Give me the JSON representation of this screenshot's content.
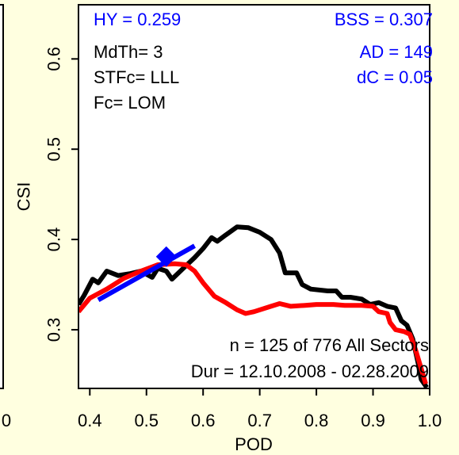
{
  "chart_data": {
    "type": "line",
    "xlabel": "POD",
    "ylabel": "CSI",
    "xlim": [
      0.38,
      1.0
    ],
    "ylim": [
      0.235,
      0.66
    ],
    "x_ticks": [
      "0.4",
      "0.5",
      "0.6",
      "0.7",
      "0.8",
      "0.9",
      "1.0"
    ],
    "y_ticks": [
      "0.3",
      "0.4",
      "0.5",
      "0.6"
    ],
    "left_edge_label": "0",
    "grid": false,
    "colors": {
      "background": "#ffffe0",
      "plot_background": "#ffffff",
      "blue_text": "#0000ff",
      "black_text": "#000000"
    },
    "series": [
      {
        "color": "#000000",
        "values_xy": [
          [
            0.38,
            0.328
          ],
          [
            0.39,
            0.338
          ],
          [
            0.405,
            0.356
          ],
          [
            0.415,
            0.352
          ],
          [
            0.43,
            0.365
          ],
          [
            0.45,
            0.36
          ],
          [
            0.47,
            0.362
          ],
          [
            0.49,
            0.365
          ],
          [
            0.51,
            0.358
          ],
          [
            0.52,
            0.368
          ],
          [
            0.535,
            0.365
          ],
          [
            0.545,
            0.356
          ],
          [
            0.565,
            0.368
          ],
          [
            0.585,
            0.38
          ],
          [
            0.6,
            0.39
          ],
          [
            0.615,
            0.402
          ],
          [
            0.625,
            0.398
          ],
          [
            0.64,
            0.405
          ],
          [
            0.66,
            0.414
          ],
          [
            0.68,
            0.413
          ],
          [
            0.7,
            0.408
          ],
          [
            0.72,
            0.4
          ],
          [
            0.735,
            0.385
          ],
          [
            0.745,
            0.363
          ],
          [
            0.765,
            0.363
          ],
          [
            0.775,
            0.35
          ],
          [
            0.79,
            0.345
          ],
          [
            0.82,
            0.343
          ],
          [
            0.835,
            0.343
          ],
          [
            0.845,
            0.336
          ],
          [
            0.86,
            0.336
          ],
          [
            0.87,
            0.335
          ],
          [
            0.88,
            0.334
          ],
          [
            0.895,
            0.328
          ],
          [
            0.91,
            0.33
          ],
          [
            0.925,
            0.326
          ],
          [
            0.94,
            0.324
          ],
          [
            0.95,
            0.31
          ],
          [
            0.96,
            0.305
          ],
          [
            0.97,
            0.29
          ],
          [
            0.98,
            0.262
          ],
          [
            0.985,
            0.245
          ],
          [
            0.995,
            0.236
          ]
        ]
      },
      {
        "color": "#ff0000",
        "values_xy": [
          [
            0.38,
            0.32
          ],
          [
            0.4,
            0.335
          ],
          [
            0.43,
            0.345
          ],
          [
            0.46,
            0.357
          ],
          [
            0.49,
            0.365
          ],
          [
            0.52,
            0.372
          ],
          [
            0.55,
            0.373
          ],
          [
            0.57,
            0.372
          ],
          [
            0.585,
            0.365
          ],
          [
            0.6,
            0.352
          ],
          [
            0.62,
            0.337
          ],
          [
            0.64,
            0.33
          ],
          [
            0.66,
            0.322
          ],
          [
            0.675,
            0.318
          ],
          [
            0.69,
            0.32
          ],
          [
            0.72,
            0.326
          ],
          [
            0.735,
            0.329
          ],
          [
            0.755,
            0.326
          ],
          [
            0.78,
            0.327
          ],
          [
            0.8,
            0.328
          ],
          [
            0.83,
            0.328
          ],
          [
            0.85,
            0.327
          ],
          [
            0.88,
            0.327
          ],
          [
            0.9,
            0.326
          ],
          [
            0.91,
            0.32
          ],
          [
            0.925,
            0.318
          ],
          [
            0.93,
            0.308
          ],
          [
            0.94,
            0.3
          ],
          [
            0.955,
            0.298
          ],
          [
            0.965,
            0.295
          ],
          [
            0.975,
            0.278
          ],
          [
            0.985,
            0.257
          ],
          [
            0.993,
            0.24
          ]
        ]
      },
      {
        "color": "#0000ff",
        "values_xy": [
          [
            0.415,
            0.333
          ],
          [
            0.585,
            0.393
          ]
        ]
      }
    ],
    "marker": {
      "x": 0.535,
      "y": 0.381,
      "shape": "diamond",
      "color": "#0000ff"
    },
    "annotations": {
      "top_left": [
        {
          "text": "HY = 0.259",
          "color": "#0000ff"
        },
        {
          "text": "MdTh= 3",
          "color": "#000000"
        },
        {
          "text": "STFc= LLL",
          "color": "#000000"
        },
        {
          "text": "Fc= LOM",
          "color": "#000000"
        }
      ],
      "top_right": [
        {
          "text": "BSS = 0.307",
          "color": "#0000ff"
        },
        {
          "text": "AD = 149",
          "color": "#0000ff"
        },
        {
          "text": "dC = 0.05",
          "color": "#0000ff"
        }
      ],
      "bottom": [
        {
          "text": "n = 125 of 776  All Sectors",
          "color": "#000000"
        },
        {
          "text": "Dur = 12.10.2008 - 02.28.2009",
          "color": "#000000"
        }
      ]
    }
  }
}
